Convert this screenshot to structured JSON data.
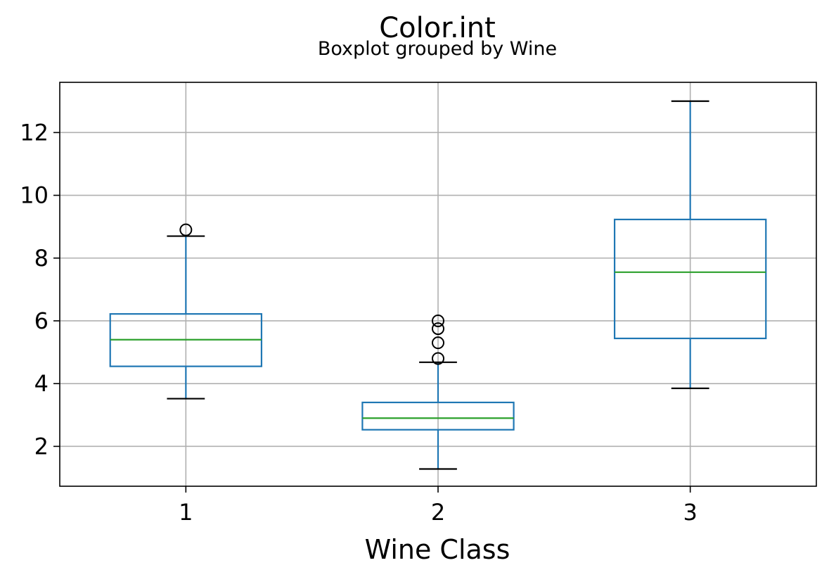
{
  "chart_data": {
    "type": "boxplot",
    "title": "Color.int",
    "subtitle": "Boxplot grouped by Wine",
    "xlabel": "Wine Class",
    "ylabel": "",
    "categories": [
      "1",
      "2",
      "3"
    ],
    "ylim": [
      0.73,
      13.6
    ],
    "yticks": [
      2,
      4,
      6,
      8,
      10,
      12
    ],
    "ytick_labels": [
      "2",
      "4",
      "6",
      "8",
      "10",
      "12"
    ],
    "grid": true,
    "legend": "none",
    "boxes": [
      {
        "category": "1",
        "whisker_low": 3.52,
        "q1": 4.55,
        "median": 5.4,
        "q3": 6.22,
        "whisker_high": 8.7,
        "outliers": [
          8.9
        ]
      },
      {
        "category": "2",
        "whisker_low": 1.28,
        "q1": 2.53,
        "median": 2.9,
        "q3": 3.4,
        "whisker_high": 4.68,
        "outliers": [
          4.8,
          5.3,
          5.75,
          6.0
        ]
      },
      {
        "category": "3",
        "whisker_low": 3.85,
        "q1": 5.44,
        "median": 7.55,
        "q3": 9.23,
        "whisker_high": 13.0,
        "outliers": []
      }
    ],
    "colors": {
      "box": "#1f77b4",
      "median": "#2ca02c",
      "cap": "#000000",
      "flier": "#000000",
      "grid": "#b0b0b0",
      "axes": "#000000"
    }
  }
}
